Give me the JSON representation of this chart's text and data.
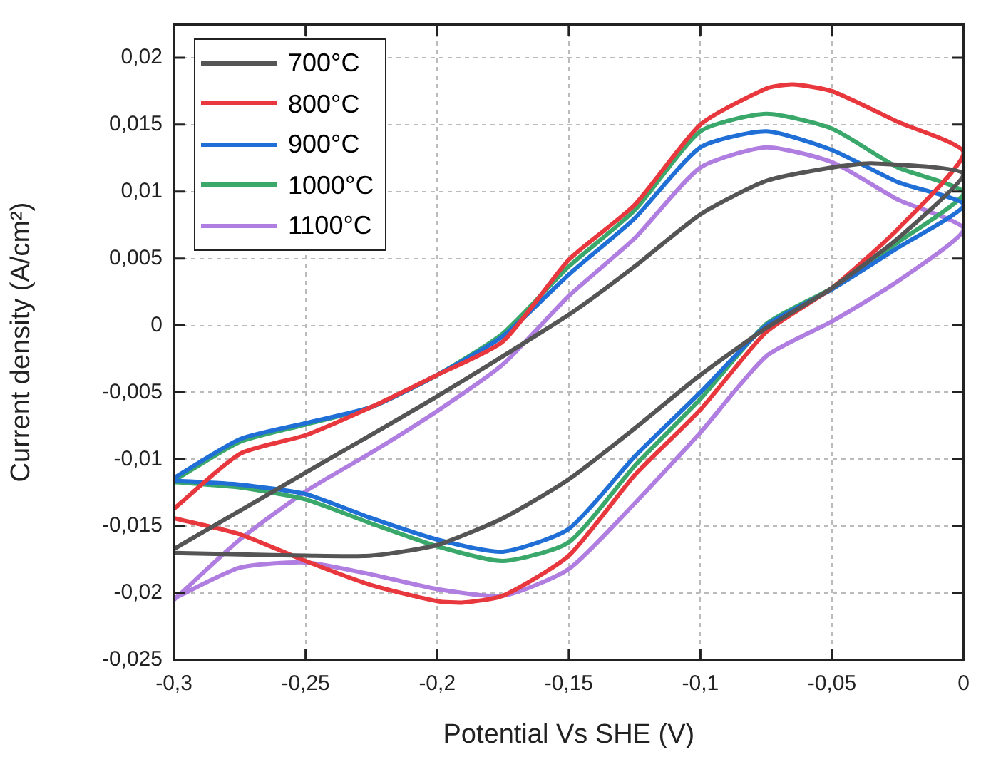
{
  "chart_data": {
    "type": "line",
    "xlabel": "Potential Vs SHE (V)",
    "ylabel": "Current density (A/cm²)",
    "xlim": [
      -0.3,
      0
    ],
    "ylim": [
      -0.025,
      0.0225
    ],
    "xticks": [
      {
        "value": -0.3,
        "label": "-0,3"
      },
      {
        "value": -0.25,
        "label": "-0,25"
      },
      {
        "value": -0.2,
        "label": "-0,2"
      },
      {
        "value": -0.15,
        "label": "-0,15"
      },
      {
        "value": -0.1,
        "label": "-0,1"
      },
      {
        "value": -0.05,
        "label": "-0,05"
      },
      0
    ],
    "yticks": [
      {
        "value": -0.025,
        "label": "-0,025"
      },
      {
        "value": -0.02,
        "label": "-0,02"
      },
      {
        "value": -0.015,
        "label": "-0,015"
      },
      {
        "value": -0.01,
        "label": "-0,01"
      },
      {
        "value": -0.005,
        "label": "-0,005"
      },
      0,
      {
        "value": 0.005,
        "label": "0,005"
      },
      {
        "value": 0.01,
        "label": "0,01"
      },
      {
        "value": 0.015,
        "label": "0,015"
      },
      {
        "value": 0.02,
        "label": "0,02"
      }
    ],
    "grid": true,
    "legend": "top left",
    "marker": "none",
    "line_style": "solid",
    "series": [
      {
        "name": "700°C",
        "color": "#555555",
        "x": [
          -0.3,
          -0.25,
          -0.2,
          -0.15,
          -0.125,
          -0.1,
          -0.075,
          -0.05,
          -0.035,
          0,
          -0.025,
          -0.05,
          -0.075,
          -0.1,
          -0.125,
          -0.15,
          -0.175,
          -0.2,
          -0.225,
          -0.25,
          -0.275,
          -0.3
        ],
        "values": [
          -0.0167,
          -0.011,
          -0.0053,
          0.0008,
          0.0044,
          0.0083,
          0.0108,
          0.0118,
          0.0121,
          0.0113,
          0.0065,
          0.0028,
          -0.0002,
          -0.0037,
          -0.0077,
          -0.0115,
          -0.0144,
          -0.0164,
          -0.0172,
          -0.0172,
          -0.0171,
          -0.017
        ]
      },
      {
        "name": "800°C",
        "color": "#e8383d",
        "x": [
          -0.3,
          -0.275,
          -0.25,
          -0.225,
          -0.2,
          -0.175,
          -0.15,
          -0.125,
          -0.1,
          -0.075,
          -0.065,
          -0.05,
          -0.025,
          0,
          -0.025,
          -0.05,
          -0.075,
          -0.1,
          -0.125,
          -0.15,
          -0.175,
          -0.19,
          -0.2,
          -0.225,
          -0.25,
          -0.275,
          -0.3
        ],
        "values": [
          -0.0137,
          -0.0096,
          -0.0082,
          -0.0061,
          -0.0037,
          -0.0012,
          0.0049,
          0.009,
          0.015,
          0.0177,
          0.018,
          0.0175,
          0.0152,
          0.0129,
          0.0072,
          0.0028,
          -0.0005,
          -0.0063,
          -0.0112,
          -0.0172,
          -0.0202,
          -0.0207,
          -0.0206,
          -0.0194,
          -0.0176,
          -0.0156,
          -0.0144
        ]
      },
      {
        "name": "900°C",
        "color": "#1f6fd6",
        "x": [
          -0.3,
          -0.275,
          -0.25,
          -0.225,
          -0.2,
          -0.175,
          -0.15,
          -0.125,
          -0.1,
          -0.075,
          -0.05,
          -0.025,
          0,
          -0.025,
          -0.05,
          -0.075,
          -0.1,
          -0.125,
          -0.15,
          -0.175,
          -0.2,
          -0.225,
          -0.25,
          -0.275,
          -0.3
        ],
        "values": [
          -0.0114,
          -0.0085,
          -0.0073,
          -0.0061,
          -0.0037,
          -0.0008,
          0.0038,
          0.008,
          0.0133,
          0.0145,
          0.0131,
          0.0107,
          0.009,
          0.0058,
          0.0027,
          0,
          -0.005,
          -0.0098,
          -0.0152,
          -0.0169,
          -0.016,
          -0.0144,
          -0.0126,
          -0.0119,
          -0.0116
        ]
      },
      {
        "name": "1000°C",
        "color": "#3aa86b",
        "x": [
          -0.3,
          -0.275,
          -0.25,
          -0.225,
          -0.2,
          -0.175,
          -0.15,
          -0.125,
          -0.1,
          -0.075,
          -0.05,
          -0.025,
          0,
          -0.025,
          -0.05,
          -0.075,
          -0.1,
          -0.125,
          -0.15,
          -0.175,
          -0.2,
          -0.225,
          -0.25,
          -0.275,
          -0.3
        ],
        "values": [
          -0.0116,
          -0.0087,
          -0.0074,
          -0.0061,
          -0.0037,
          -0.0006,
          0.0044,
          0.0086,
          0.0145,
          0.0158,
          0.0147,
          0.0118,
          0.0099,
          0.0062,
          0.0028,
          0.0001,
          -0.0055,
          -0.0105,
          -0.0162,
          -0.0176,
          -0.0165,
          -0.0148,
          -0.013,
          -0.0121,
          -0.0117
        ]
      },
      {
        "name": "1100°C",
        "color": "#b07ee0",
        "x": [
          -0.3,
          -0.275,
          -0.25,
          -0.225,
          -0.2,
          -0.175,
          -0.15,
          -0.125,
          -0.1,
          -0.075,
          -0.05,
          -0.025,
          0,
          -0.025,
          -0.05,
          -0.075,
          -0.1,
          -0.125,
          -0.15,
          -0.175,
          -0.2,
          -0.225,
          -0.25,
          -0.275,
          -0.3
        ],
        "values": [
          -0.0205,
          -0.016,
          -0.0124,
          -0.0095,
          -0.0064,
          -0.0029,
          0.0022,
          0.0065,
          0.0118,
          0.0133,
          0.0122,
          0.0094,
          0.0072,
          0.0033,
          0.0003,
          -0.0023,
          -0.008,
          -0.0133,
          -0.0182,
          -0.0202,
          -0.0197,
          -0.0186,
          -0.0177,
          -0.0181,
          -0.0204
        ]
      }
    ]
  }
}
